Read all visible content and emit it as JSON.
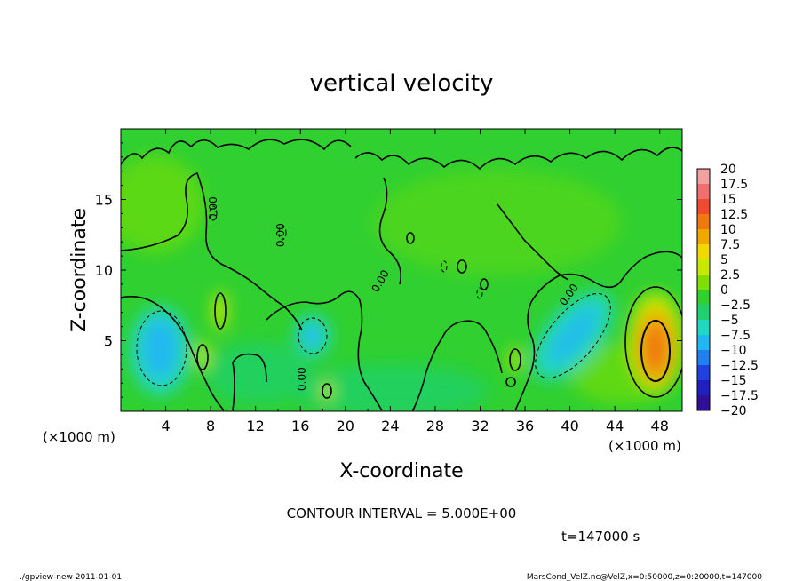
{
  "chart_data": {
    "type": "heatmap",
    "title": "vertical velocity",
    "xlabel": "X-coordinate",
    "ylabel": "Z-coordinate",
    "x_unit": "(×1000 m)",
    "y_unit": "(×1000 m)",
    "xlim": [
      0,
      50
    ],
    "ylim": [
      0,
      20
    ],
    "x_ticks": [
      4,
      8,
      12,
      16,
      20,
      24,
      28,
      32,
      36,
      40,
      44,
      48
    ],
    "y_ticks": [
      5,
      10,
      15
    ],
    "colorbar": {
      "labels": [
        "20",
        "17.5",
        "15",
        "12.5",
        "10",
        "7.5",
        "5",
        "2.5",
        "0",
        "−2.5",
        "−5",
        "−7.5",
        "−10",
        "−12.5",
        "−15",
        "−17.5",
        "−20"
      ],
      "colors": [
        "#f2a0a0",
        "#f07070",
        "#f04a30",
        "#f07810",
        "#f0a800",
        "#f0d800",
        "#c8e800",
        "#7fe000",
        "#30d030",
        "#20d070",
        "#20d8c0",
        "#20b8f0",
        "#2080f0",
        "#2040e0",
        "#2020c0",
        "#301098"
      ]
    },
    "features": [
      {
        "x": 4.5,
        "z": 4.5,
        "value": -8
      },
      {
        "x": 17,
        "z": 5.2,
        "value": -7
      },
      {
        "x": 40,
        "z": 5,
        "value": -6
      },
      {
        "x": 47.5,
        "z": 4.5,
        "value": 12
      },
      {
        "x": 8.5,
        "z": 7,
        "value": 5
      },
      {
        "x": 35,
        "z": 3.5,
        "value": 5
      }
    ],
    "contour_interval": "CONTOUR INTERVAL = 5.000E+00",
    "time_label": "t=147000 s"
  },
  "footer": {
    "left": "./gpview-new  2011-01-01",
    "right": "MarsCond_VelZ.nc@VelZ,x=0:50000,z=0:20000,t=147000"
  },
  "contour_labels": {
    "zero": "0.00"
  }
}
